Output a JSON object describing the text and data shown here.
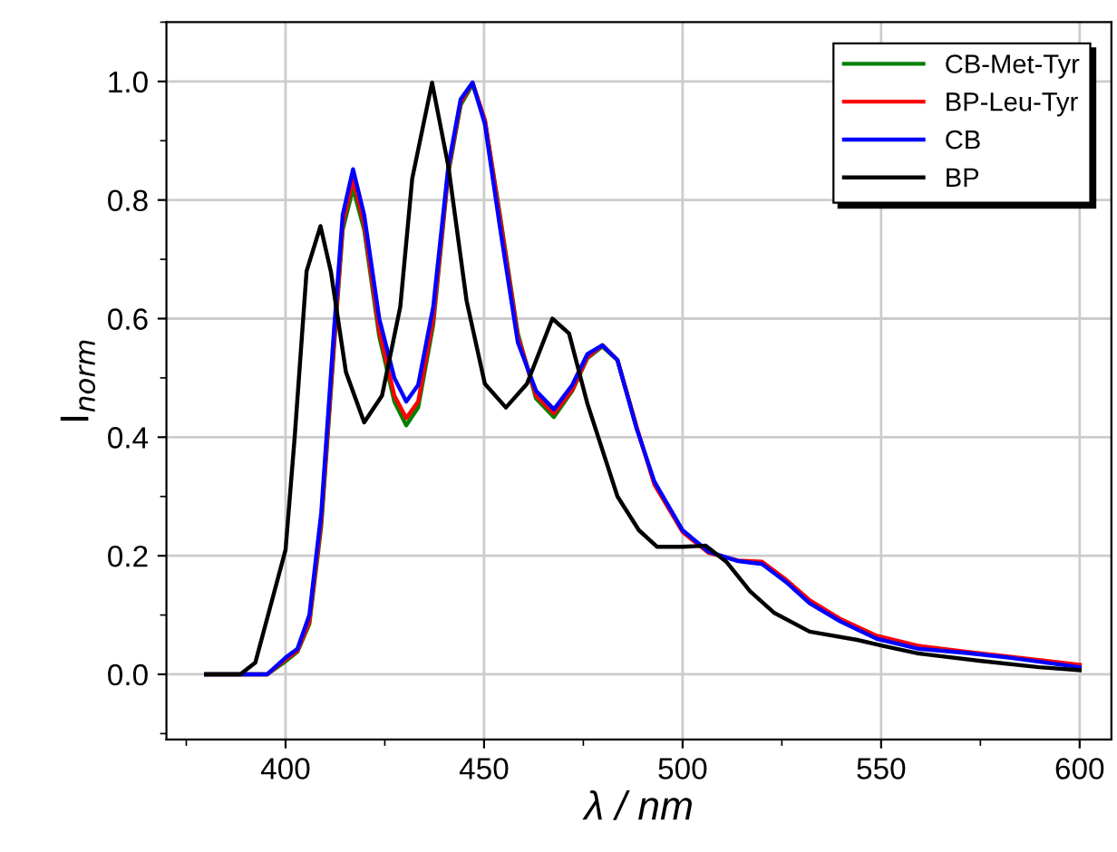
{
  "chart_data": {
    "type": "line",
    "xlabel": "λ / nm",
    "ylabel": "I$_{norm}$",
    "xlim": [
      370,
      608
    ],
    "xticks": [
      400,
      450,
      500,
      550,
      600
    ],
    "ylim": [
      -0.11,
      1.1
    ],
    "yticks": [
      {
        "value": 0,
        "label": "0.0"
      },
      {
        "value": 0.2,
        "label": "0.2"
      },
      {
        "value": 0.4,
        "label": "0.4"
      },
      {
        "value": 0.6,
        "label": "0.6"
      },
      {
        "value": 0.8,
        "label": "0.8"
      },
      {
        "value": 1,
        "label": "1.0"
      }
    ],
    "grid": true,
    "legend": "top right",
    "line_style": "solid",
    "marker": "none",
    "series": [
      {
        "name": "CB-Met-Tyr",
        "color": "#008000",
        "x": [
          380,
          395.4,
          400,
          403,
          406,
          409,
          412.2,
          414.4,
          417,
          419.8,
          423.6,
          427.4,
          430.4,
          433.4,
          437.2,
          441,
          444.1,
          447.1,
          450.2,
          454,
          458.5,
          463.1,
          467.6,
          472.2,
          476,
          479.8,
          483.6,
          488.3
        ],
        "values": [
          0,
          0,
          0.022,
          0.038,
          0.085,
          0.25,
          0.55,
          0.75,
          0.82,
          0.75,
          0.57,
          0.46,
          0.42,
          0.45,
          0.59,
          0.845,
          0.96,
          0.995,
          0.935,
          0.775,
          0.575,
          0.465,
          0.434,
          0.478,
          0.533,
          0.553,
          0.53,
          0.42
        ]
      },
      {
        "name": "BP-Leu-Tyr",
        "color": "#ff0000",
        "x": [
          380,
          395.4,
          400,
          403,
          406,
          409,
          412.2,
          414.4,
          417,
          419.8,
          423.6,
          427.4,
          430.4,
          433.4,
          437.2,
          441,
          444.1,
          447.1,
          450.2,
          454,
          458.5,
          463.1,
          467.6,
          472.2,
          476,
          479.8,
          483.6,
          488.3,
          492.9,
          500,
          506.5,
          514,
          520,
          526,
          532,
          539.8,
          548.9,
          559.5,
          571.7,
          582.3,
          600
        ],
        "values": [
          0,
          0,
          0.025,
          0.04,
          0.09,
          0.26,
          0.56,
          0.76,
          0.835,
          0.76,
          0.58,
          0.47,
          0.432,
          0.46,
          0.6,
          0.85,
          0.965,
          0.998,
          0.935,
          0.77,
          0.57,
          0.47,
          0.44,
          0.48,
          0.535,
          0.555,
          0.53,
          0.42,
          0.32,
          0.24,
          0.205,
          0.192,
          0.19,
          0.16,
          0.125,
          0.093,
          0.065,
          0.048,
          0.038,
          0.03,
          0.016
        ]
      },
      {
        "name": "CB",
        "color": "#0000ff",
        "x": [
          380,
          395.4,
          400,
          403,
          406,
          409,
          412.2,
          414.4,
          417,
          419.8,
          423.6,
          427.4,
          430.4,
          433.4,
          437.2,
          441,
          444.1,
          447.1,
          450.2,
          454,
          458.5,
          463.1,
          467.6,
          472.2,
          476,
          479.8,
          483.6,
          488.3,
          492.9,
          500,
          506.5,
          514,
          520,
          526,
          532,
          539.8,
          548.9,
          559.5,
          571.7,
          582.3,
          600
        ],
        "values": [
          0,
          0,
          0.028,
          0.043,
          0.1,
          0.273,
          0.58,
          0.775,
          0.852,
          0.775,
          0.6,
          0.5,
          0.46,
          0.488,
          0.62,
          0.857,
          0.97,
          0.998,
          0.928,
          0.754,
          0.56,
          0.478,
          0.447,
          0.488,
          0.54,
          0.555,
          0.53,
          0.417,
          0.325,
          0.243,
          0.207,
          0.191,
          0.186,
          0.156,
          0.12,
          0.089,
          0.06,
          0.043,
          0.036,
          0.028,
          0.012
        ]
      },
      {
        "name": "BP",
        "color": "#000000",
        "x": [
          380,
          388.6,
          392.4,
          396.2,
          400,
          402.3,
          405.3,
          408.8,
          411.4,
          415.2,
          419.8,
          424.3,
          428.9,
          431.9,
          436.9,
          441,
          445.6,
          450.2,
          455.5,
          460.8,
          467.2,
          471.4,
          476,
          483.6,
          489,
          493.6,
          500,
          505.8,
          511,
          517,
          523,
          532,
          544,
          550.5,
          559.5,
          574.7,
          589.8,
          600
        ],
        "values": [
          0,
          0,
          0.02,
          0.115,
          0.21,
          0.4,
          0.68,
          0.756,
          0.68,
          0.51,
          0.425,
          0.47,
          0.62,
          0.836,
          0.998,
          0.857,
          0.63,
          0.49,
          0.45,
          0.49,
          0.6,
          0.575,
          0.457,
          0.3,
          0.243,
          0.215,
          0.215,
          0.217,
          0.19,
          0.14,
          0.104,
          0.072,
          0.058,
          0.048,
          0.035,
          0.023,
          0.012,
          0.007
        ]
      }
    ]
  }
}
